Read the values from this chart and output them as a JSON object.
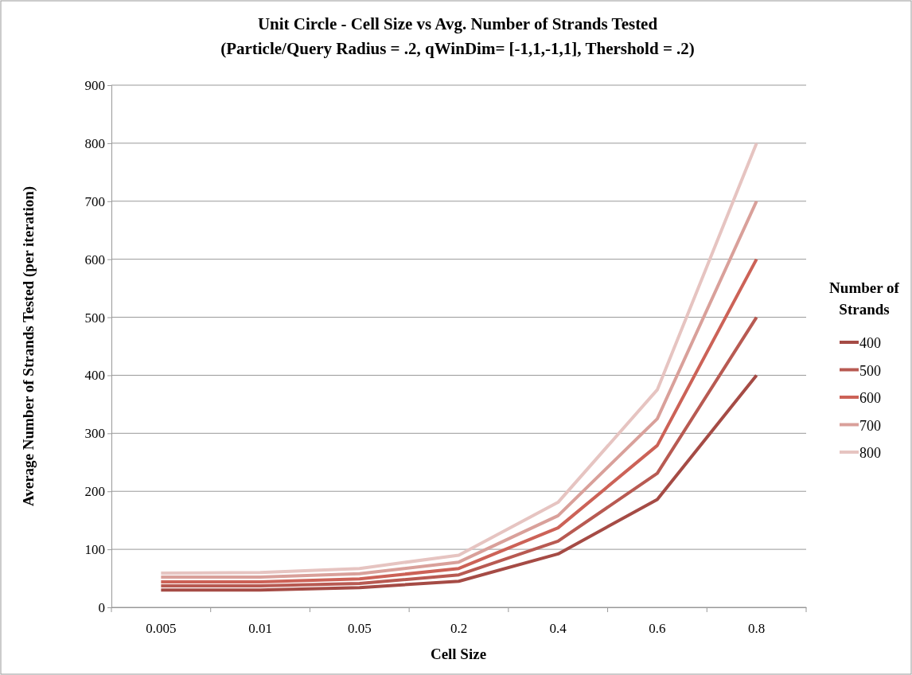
{
  "chart_data": {
    "type": "line",
    "title": "Unit Circle - Cell Size vs Avg. Number of Strands Tested",
    "subtitle": "(Particle/Query Radius = .2, qWinDim= [-1,1,-1,1], Thershold = .2)",
    "xlabel": "Cell Size",
    "ylabel": "Average  Number of Strands Tested (per iteration)",
    "legend_title": "Number of Strands",
    "categories": [
      "0.005",
      "0.01",
      "0.05",
      "0.2",
      "0.4",
      "0.6",
      "0.8"
    ],
    "series": [
      {
        "name": "400",
        "color": "#a54b45",
        "values": [
          30,
          30,
          34,
          45,
          92,
          186,
          400
        ]
      },
      {
        "name": "500",
        "color": "#b85a52",
        "values": [
          37,
          37,
          41,
          56,
          114,
          231,
          500
        ]
      },
      {
        "name": "600",
        "color": "#cc6257",
        "values": [
          44,
          44,
          49,
          67,
          137,
          279,
          600
        ]
      },
      {
        "name": "700",
        "color": "#d9a09a",
        "values": [
          52,
          52,
          58,
          78,
          158,
          325,
          700
        ]
      },
      {
        "name": "800",
        "color": "#e6c4c1",
        "values": [
          59,
          60,
          67,
          90,
          181,
          375,
          800
        ]
      }
    ],
    "ylim": [
      0,
      900
    ],
    "yticks": [
      0,
      100,
      200,
      300,
      400,
      500,
      600,
      700,
      800,
      900
    ],
    "grid": "y",
    "legend": "right",
    "marker": "none",
    "line_style": "solid"
  }
}
